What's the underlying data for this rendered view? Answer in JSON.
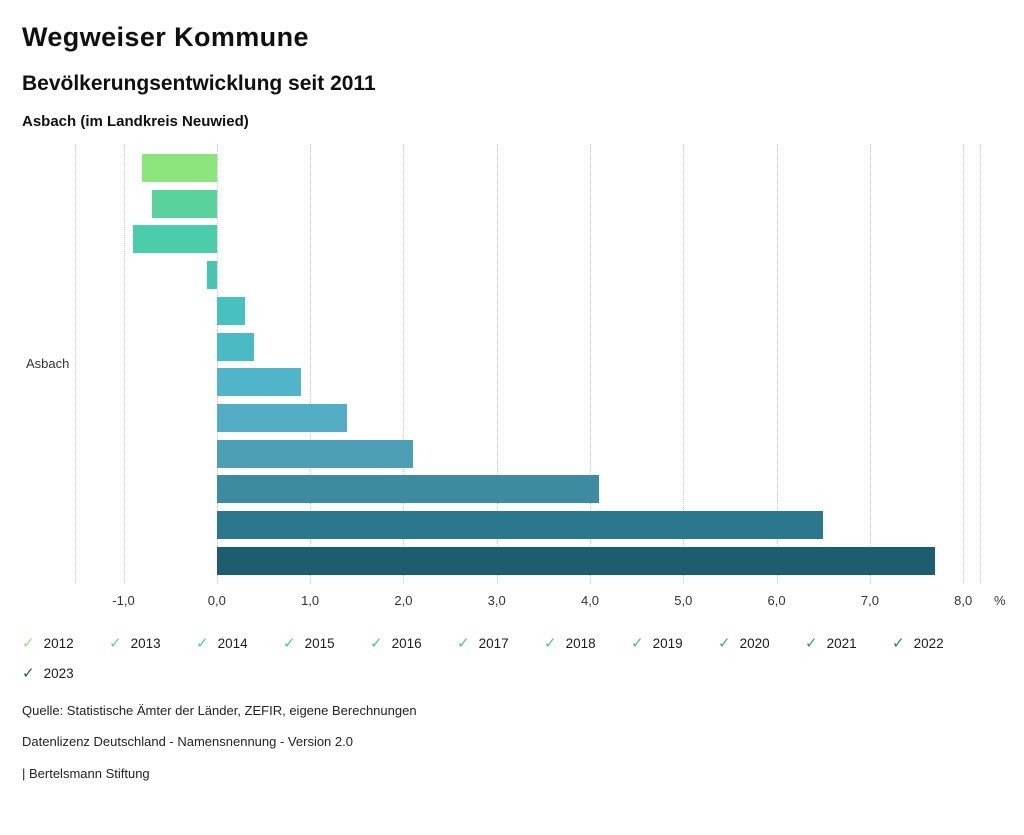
{
  "header": {
    "title": "Wegweiser Kommune",
    "subtitle": "Bevölkerungsentwicklung seit 2011",
    "location": "Asbach (im Landkreis Neuwied)"
  },
  "chart_data": {
    "type": "bar",
    "orientation": "horizontal",
    "category": "Asbach",
    "unit": "%",
    "xlabel": "",
    "ylabel": "Asbach",
    "xlim": [
      -1.52,
      8.18
    ],
    "grid": true,
    "gridline_values": [
      -1.52,
      -1,
      0,
      1,
      2,
      3,
      4,
      5,
      6,
      7,
      8,
      8.18
    ],
    "ticks": [
      {
        "value": -1,
        "label": "-1,0"
      },
      {
        "value": 0,
        "label": "0,0"
      },
      {
        "value": 1,
        "label": "1,0"
      },
      {
        "value": 2,
        "label": "2,0"
      },
      {
        "value": 3,
        "label": "3,0"
      },
      {
        "value": 4,
        "label": "4,0"
      },
      {
        "value": 5,
        "label": "5,0"
      },
      {
        "value": 6,
        "label": "6,0"
      },
      {
        "value": 7,
        "label": "7,0"
      },
      {
        "value": 8,
        "label": "8,0"
      }
    ],
    "series": [
      {
        "year": "2012",
        "value": -0.8,
        "color": "#8ce47d"
      },
      {
        "year": "2013",
        "value": -0.7,
        "color": "#59d29b"
      },
      {
        "year": "2014",
        "value": -0.9,
        "color": "#4bccaa"
      },
      {
        "year": "2015",
        "value": -0.1,
        "color": "#45c6b3"
      },
      {
        "year": "2016",
        "value": 0.3,
        "color": "#46c1bd"
      },
      {
        "year": "2017",
        "value": 0.4,
        "color": "#4abbc5"
      },
      {
        "year": "2018",
        "value": 0.9,
        "color": "#50b5c8"
      },
      {
        "year": "2019",
        "value": 1.4,
        "color": "#53adc4"
      },
      {
        "year": "2020",
        "value": 2.1,
        "color": "#4c9fb4"
      },
      {
        "year": "2021",
        "value": 4.1,
        "color": "#3c8ba1"
      },
      {
        "year": "2022",
        "value": 6.5,
        "color": "#2b778e"
      },
      {
        "year": "2023",
        "value": 7.7,
        "color": "#1d5e6e"
      }
    ],
    "legend_position": "bottom"
  },
  "legend": {
    "check_glyph": "✓"
  },
  "footer": {
    "source": "Quelle: Statistische Ämter der Länder, ZEFIR, eigene Berechnungen",
    "license": "Datenlizenz Deutschland - Namensnennung - Version 2.0",
    "attribution": "| Bertelsmann Stiftung"
  }
}
